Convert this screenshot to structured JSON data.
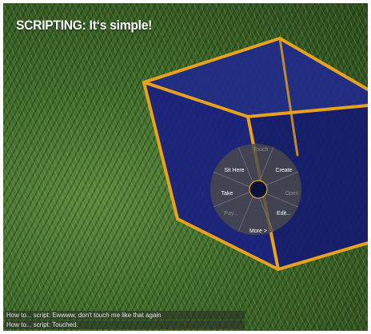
{
  "title": "SCRIPTING: It‘s simple!",
  "pie_menu": {
    "items": [
      {
        "label": "Touch",
        "enabled": false
      },
      {
        "label": "Create",
        "enabled": true
      },
      {
        "label": "Open",
        "enabled": false
      },
      {
        "label": "Edit...",
        "enabled": true
      },
      {
        "label": "More >",
        "enabled": true
      },
      {
        "label": "Pay...",
        "enabled": false
      },
      {
        "label": "Take",
        "enabled": true
      },
      {
        "label": "Sit Here",
        "enabled": true
      }
    ]
  },
  "chat": {
    "lines": [
      "How to... script: Ewwww, don't touch me like that again",
      "How to... script: Touched."
    ]
  },
  "colors": {
    "cube_fill": "#1a1f8c",
    "cube_edge": "#e8a21c",
    "pie_bg": "#4a4a4a"
  }
}
